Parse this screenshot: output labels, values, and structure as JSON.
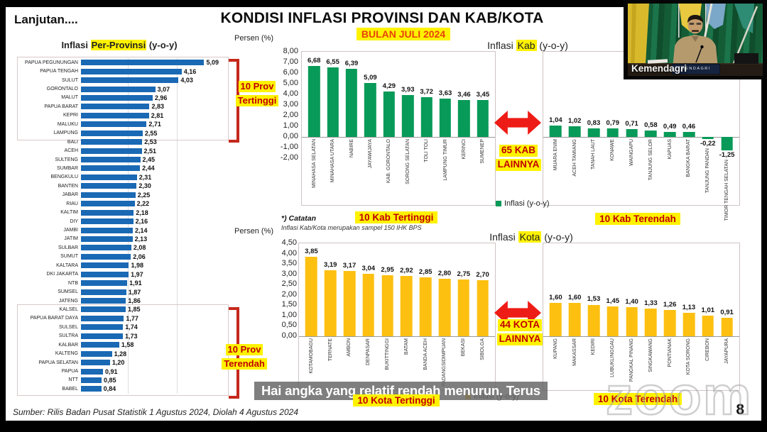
{
  "slide": {
    "continuation": "Lanjutan....",
    "title": "KONDISI INFLASI PROVINSI DAN KAB/KOTA",
    "subtitle": "BULAN JULI 2024",
    "source": "Sumber: Rilis Badan Pusat Statistik 1 Agustus 2024, Diolah 4 Agustus 2024",
    "page_number": "8",
    "caption": "Hai angka yang relatif rendah menurun. Terus",
    "note_title": "*) Catatan",
    "note_body": "Inflasi Kab/Kota merupakan sampel 150 IHK BPS",
    "watermark": "zoom"
  },
  "webcam": {
    "label": "Kemendagri",
    "nameplate": "MENDAGRI"
  },
  "labels": {
    "persen": "Persen (%)",
    "prov_title_pre": "Inflasi ",
    "prov_title_hl": "Per-Provinsi",
    "prov_title_post": " (y-o-y)",
    "kab_title_pre": "Inflasi ",
    "kab_title_hl": "Kab",
    "kab_title_post": " (y-o-y)",
    "kota_title_pre": "Inflasi ",
    "kota_title_hl": "Kota",
    "kota_title_post": " (y-o-y)",
    "legend_kab": "Inflasi (y-o-y)",
    "legend_kota": "Inflasi (y-o-y)",
    "prov_tertinggi_line1": "10 Prov",
    "prov_tertinggi_line2": "Tertinggi",
    "prov_terendah_line1": "10 Prov",
    "prov_terendah_line2": "Terendah",
    "kab_tertinggi": "10 Kab Tertinggi",
    "kab_terendah": "10 Kab Terendah",
    "kota_tertinggi": "10 Kota Tertinggi",
    "kota_terendah": "10 Kota Terendah",
    "kab_lainnya_line1": "65 KAB",
    "kab_lainnya_line2": "LAINNYA",
    "kota_lainnya_line1": "44 KOTA",
    "kota_lainnya_line2": "LAINNYA"
  },
  "colors": {
    "province_bar": "#1a69b4",
    "kab_bar": "#089a58",
    "kota_bar": "#fdc011",
    "arrow_red": "#ee1c16",
    "bracket_red": "#c5281c",
    "highlight_yellow": "#fff200",
    "label_red": "#c00000",
    "subtitle_red": "#e8420b"
  },
  "chart_data": [
    {
      "id": "provinsi",
      "type": "bar",
      "orientation": "horizontal",
      "title": "Inflasi Per-Provinsi (y-o-y)",
      "unit": "%",
      "xlim": [
        0,
        5.75
      ],
      "gridlines": [
        2,
        4
      ],
      "categories": [
        "PAPUA PEGUNUNGAN",
        "PAPUA TENGAH",
        "SULUT",
        "GORONTALO",
        "MALUT",
        "PAPUA BARAT",
        "KEPRI",
        "MALUKU",
        "LAMPUNG",
        "BALI",
        "ACEH",
        "SULTENG",
        "SUMBAR",
        "BENGKULU",
        "BANTEN",
        "JABAR",
        "RIAU",
        "KALTIM",
        "DIY",
        "JAMBI",
        "JATIM",
        "SULBAR",
        "SUMUT",
        "KALTARA",
        "DKI JAKARTA",
        "NTB",
        "SUMSEL",
        "JATENG",
        "KALSEL",
        "PAPUA BARAT DAYA",
        "SULSEL",
        "SULTRA",
        "KALBAR",
        "KALTENG",
        "PAPUA SELATAN",
        "PAPUA",
        "NTT",
        "BABEL"
      ],
      "values": [
        5.09,
        4.16,
        4.03,
        3.07,
        2.96,
        2.83,
        2.81,
        2.71,
        2.55,
        2.53,
        2.51,
        2.45,
        2.44,
        2.31,
        2.3,
        2.25,
        2.22,
        2.18,
        2.16,
        2.14,
        2.13,
        2.08,
        2.06,
        1.98,
        1.97,
        1.91,
        1.87,
        1.86,
        1.85,
        1.77,
        1.74,
        1.73,
        1.58,
        1.28,
        1.2,
        0.91,
        0.85,
        0.84
      ]
    },
    {
      "id": "kab_tertinggi",
      "type": "bar",
      "title": "10 Kab Tertinggi",
      "ylabel": "Persen (%)",
      "ylim": [
        -2,
        8
      ],
      "yticks": [
        8,
        7,
        6,
        5,
        4,
        3,
        2,
        1,
        0,
        -1,
        -2
      ],
      "legend": "Inflasi (y-o-y)",
      "categories": [
        "MINAHASA SELATAN",
        "MINAHASA UTARA",
        "NABIRE",
        "JAYAWIJAYA",
        "KAB. GORONTALO",
        "SORONG SELATAN",
        "TOLI TOLI",
        "LAMPUNG TIMUR",
        "KERINCI",
        "SUMENEP"
      ],
      "values": [
        6.68,
        6.55,
        6.39,
        5.09,
        4.29,
        3.93,
        3.72,
        3.63,
        3.46,
        3.45
      ]
    },
    {
      "id": "kab_terendah",
      "type": "bar",
      "title": "10 Kab Terendah",
      "ylim": [
        -2,
        8
      ],
      "yticks": [
        8,
        7,
        6,
        5,
        4,
        3,
        2,
        1,
        0,
        -1,
        -2
      ],
      "legend": "Inflasi (y-o-y)",
      "categories": [
        "MUARA ENIM",
        "ACEH TAMIANG",
        "TANAH LAUT",
        "KONAWE",
        "WAINGAPU",
        "TANJUNG SELOR",
        "KAPUAS",
        "BANGKA BARAT",
        "TANJUNG PANDAN",
        "TIMOR TENGAH SELATAN"
      ],
      "values": [
        1.04,
        1.02,
        0.83,
        0.79,
        0.71,
        0.58,
        0.49,
        0.46,
        -0.22,
        -1.25
      ]
    },
    {
      "id": "kota_tertinggi",
      "type": "bar",
      "title": "10 Kota Tertinggi",
      "ylabel": "Persen (%)",
      "ylim": [
        0,
        4.5
      ],
      "yticks": [
        4.5,
        4,
        3.5,
        3,
        2.5,
        2,
        1.5,
        1,
        0.5,
        0
      ],
      "legend": "Inflasi (y-o-y)",
      "categories": [
        "KOTAMOBAGU",
        "TERNATE",
        "AMBON",
        "DENPASAR",
        "BUKITTINGGI",
        "BATAM",
        "BANDA ACEH",
        "PADANGSIDIMPUAN",
        "BEKASI",
        "SIBOLGA"
      ],
      "values": [
        3.85,
        3.19,
        3.17,
        3.04,
        2.95,
        2.92,
        2.85,
        2.8,
        2.75,
        2.7
      ]
    },
    {
      "id": "kota_terendah",
      "type": "bar",
      "title": "10 Kota Terendah",
      "ylim": [
        0,
        4.5
      ],
      "yticks": [
        4.5,
        4,
        3.5,
        3,
        2.5,
        2,
        1.5,
        1,
        0.5,
        0
      ],
      "legend": "Inflasi (y-o-y)",
      "categories": [
        "KUPANG",
        "MAKASSAR",
        "KEDIRI",
        "LUBUKLINGGAU",
        "PANGKAL PINANG",
        "SINGKAWANG",
        "PONTIANAK",
        "KOTA SORONG",
        "CIREBON",
        "JAYAPURA"
      ],
      "values": [
        1.6,
        1.6,
        1.53,
        1.45,
        1.4,
        1.33,
        1.26,
        1.13,
        1.01,
        0.91
      ]
    }
  ]
}
